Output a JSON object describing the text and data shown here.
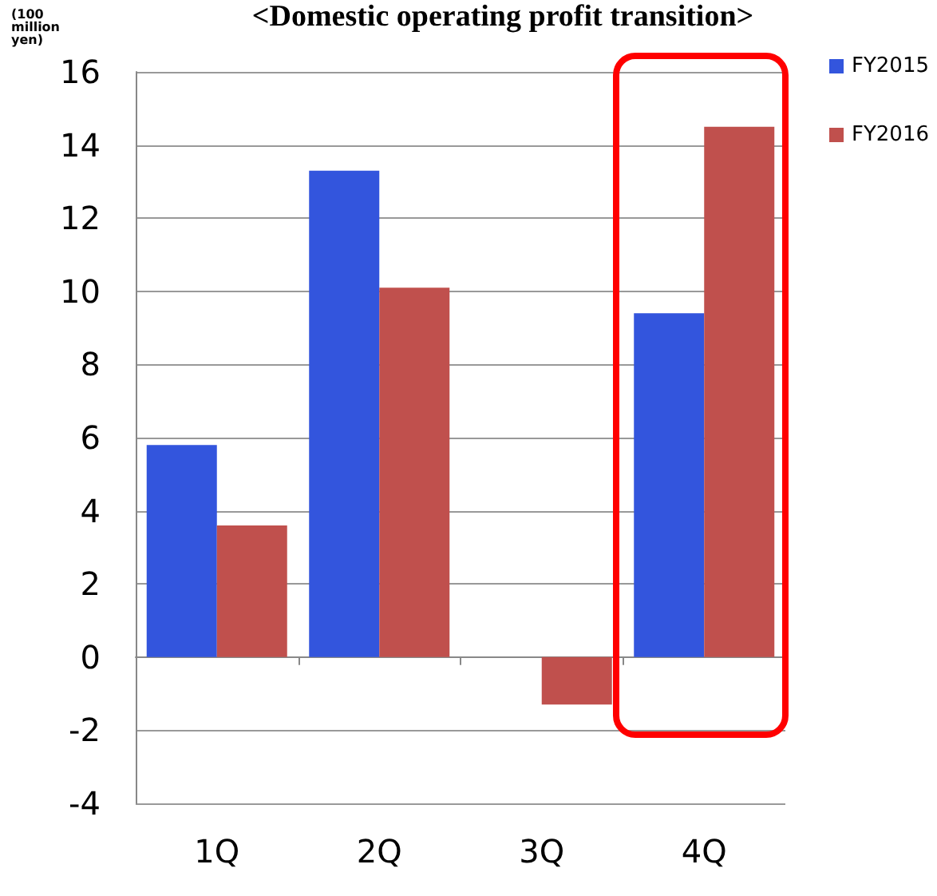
{
  "chart_data": {
    "type": "bar",
    "title": "<Domestic operating profit transition>",
    "ylabel": "(100 million yen)",
    "categories": [
      "1Q",
      "2Q",
      "3Q",
      "4Q"
    ],
    "series": [
      {
        "name": "FY2015",
        "color": "#3355dd",
        "values": [
          5.8,
          13.3,
          0,
          9.4
        ]
      },
      {
        "name": "FY2016",
        "color": "#c0504d",
        "values": [
          3.6,
          10.1,
          -1.3,
          14.5
        ]
      }
    ],
    "ylim": [
      -4,
      16
    ],
    "yticks": [
      -4,
      -2,
      0,
      2,
      4,
      6,
      8,
      10,
      12,
      14,
      16
    ],
    "grid": "y",
    "legend": "top right"
  }
}
